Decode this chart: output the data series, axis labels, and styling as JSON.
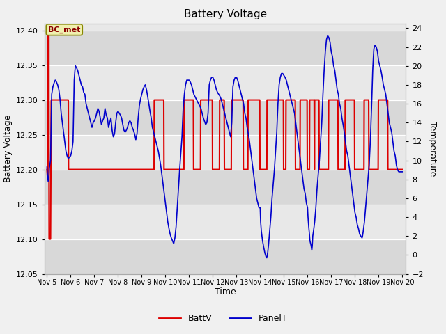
{
  "title": "Battery Voltage",
  "xlabel": "Time",
  "ylabel_left": "Battery Voltage",
  "ylabel_right": "Temperature",
  "ylim_left": [
    12.05,
    12.41
  ],
  "ylim_right": [
    -2,
    24.5
  ],
  "yticks_left": [
    12.05,
    12.1,
    12.15,
    12.2,
    12.25,
    12.3,
    12.35,
    12.4
  ],
  "yticks_right": [
    -2,
    0,
    2,
    4,
    6,
    8,
    10,
    12,
    14,
    16,
    18,
    20,
    22,
    24
  ],
  "annotation_text": "BC_met",
  "fig_bg": "#f0f0f0",
  "plot_bg": "#d8d8d8",
  "band_color": "#e8e8e8",
  "batt_color": "#dd0000",
  "panel_color": "#0000cc",
  "legend_items": [
    "BattV",
    "PanelT"
  ],
  "batt_data": [
    [
      5.0,
      12.2
    ],
    [
      5.02,
      12.19
    ],
    [
      5.05,
      12.4
    ],
    [
      5.08,
      12.4
    ],
    [
      5.09,
      12.1
    ],
    [
      5.15,
      12.1
    ],
    [
      5.18,
      12.3
    ],
    [
      5.9,
      12.3
    ],
    [
      5.91,
      12.2
    ],
    [
      6.0,
      12.2
    ],
    [
      6.55,
      12.2
    ],
    [
      7.0,
      12.2
    ],
    [
      7.5,
      12.2
    ],
    [
      8.0,
      12.2
    ],
    [
      9.0,
      12.2
    ],
    [
      9.52,
      12.2
    ],
    [
      9.53,
      12.3
    ],
    [
      9.93,
      12.3
    ],
    [
      9.94,
      12.2
    ],
    [
      10.0,
      12.2
    ],
    [
      10.78,
      12.2
    ],
    [
      10.79,
      12.3
    ],
    [
      11.18,
      12.3
    ],
    [
      11.19,
      12.2
    ],
    [
      11.48,
      12.2
    ],
    [
      11.49,
      12.3
    ],
    [
      11.98,
      12.3
    ],
    [
      11.99,
      12.2
    ],
    [
      12.28,
      12.2
    ],
    [
      12.29,
      12.3
    ],
    [
      12.48,
      12.3
    ],
    [
      12.49,
      12.2
    ],
    [
      12.78,
      12.2
    ],
    [
      12.79,
      12.3
    ],
    [
      13.28,
      12.3
    ],
    [
      13.29,
      12.2
    ],
    [
      13.48,
      12.2
    ],
    [
      13.49,
      12.3
    ],
    [
      13.98,
      12.3
    ],
    [
      13.99,
      12.2
    ],
    [
      14.28,
      12.2
    ],
    [
      14.29,
      12.3
    ],
    [
      14.98,
      12.3
    ],
    [
      14.99,
      12.2
    ],
    [
      15.08,
      12.2
    ],
    [
      15.09,
      12.3
    ],
    [
      15.48,
      12.3
    ],
    [
      15.49,
      12.2
    ],
    [
      15.68,
      12.2
    ],
    [
      15.69,
      12.3
    ],
    [
      15.98,
      12.3
    ],
    [
      15.99,
      12.2
    ],
    [
      16.08,
      12.2
    ],
    [
      16.09,
      12.3
    ],
    [
      16.28,
      12.3
    ],
    [
      16.29,
      12.2
    ],
    [
      16.3,
      12.3
    ],
    [
      16.48,
      12.3
    ],
    [
      16.49,
      12.2
    ],
    [
      16.88,
      12.2
    ],
    [
      16.89,
      12.3
    ],
    [
      17.28,
      12.3
    ],
    [
      17.29,
      12.2
    ],
    [
      17.58,
      12.2
    ],
    [
      17.59,
      12.3
    ],
    [
      17.98,
      12.3
    ],
    [
      17.99,
      12.2
    ],
    [
      18.38,
      12.2
    ],
    [
      18.39,
      12.3
    ],
    [
      18.58,
      12.3
    ],
    [
      18.59,
      12.2
    ],
    [
      18.98,
      12.2
    ],
    [
      18.99,
      12.3
    ],
    [
      19.38,
      12.3
    ],
    [
      19.39,
      12.2
    ],
    [
      19.48,
      12.2
    ],
    [
      20.0,
      12.2
    ]
  ],
  "panel_data": [
    [
      5.0,
      9.3
    ],
    [
      5.02,
      8.5
    ],
    [
      5.05,
      7.8
    ],
    [
      5.08,
      8.3
    ],
    [
      5.1,
      9.2
    ],
    [
      5.15,
      10.0
    ],
    [
      5.2,
      17.0
    ],
    [
      5.25,
      17.8
    ],
    [
      5.3,
      18.2
    ],
    [
      5.35,
      18.5
    ],
    [
      5.4,
      18.3
    ],
    [
      5.45,
      18.0
    ],
    [
      5.5,
      17.5
    ],
    [
      5.55,
      16.5
    ],
    [
      5.6,
      15.0
    ],
    [
      5.65,
      14.0
    ],
    [
      5.7,
      13.0
    ],
    [
      5.75,
      12.0
    ],
    [
      5.8,
      11.0
    ],
    [
      5.85,
      10.5
    ],
    [
      5.9,
      10.2
    ],
    [
      6.0,
      10.5
    ],
    [
      6.05,
      11.0
    ],
    [
      6.1,
      12.0
    ],
    [
      6.15,
      18.5
    ],
    [
      6.18,
      19.5
    ],
    [
      6.2,
      20.0
    ],
    [
      6.25,
      19.8
    ],
    [
      6.3,
      19.5
    ],
    [
      6.35,
      19.0
    ],
    [
      6.4,
      18.5
    ],
    [
      6.45,
      18.0
    ],
    [
      6.5,
      17.8
    ],
    [
      6.55,
      17.2
    ],
    [
      6.6,
      17.0
    ],
    [
      6.65,
      16.0
    ],
    [
      6.7,
      15.5
    ],
    [
      6.75,
      15.0
    ],
    [
      6.8,
      14.5
    ],
    [
      6.85,
      14.0
    ],
    [
      6.9,
      13.5
    ],
    [
      6.95,
      14.0
    ],
    [
      7.0,
      14.2
    ],
    [
      7.05,
      14.5
    ],
    [
      7.1,
      15.0
    ],
    [
      7.15,
      15.5
    ],
    [
      7.2,
      15.2
    ],
    [
      7.25,
      14.5
    ],
    [
      7.3,
      13.8
    ],
    [
      7.35,
      14.2
    ],
    [
      7.4,
      14.5
    ],
    [
      7.45,
      15.5
    ],
    [
      7.5,
      14.8
    ],
    [
      7.55,
      14.5
    ],
    [
      7.6,
      13.5
    ],
    [
      7.65,
      14.0
    ],
    [
      7.7,
      14.5
    ],
    [
      7.75,
      13.2
    ],
    [
      7.8,
      12.5
    ],
    [
      7.85,
      12.8
    ],
    [
      7.9,
      14.0
    ],
    [
      7.95,
      15.0
    ],
    [
      8.0,
      15.2
    ],
    [
      8.05,
      15.0
    ],
    [
      8.1,
      14.8
    ],
    [
      8.15,
      14.5
    ],
    [
      8.2,
      13.8
    ],
    [
      8.25,
      13.2
    ],
    [
      8.3,
      13.0
    ],
    [
      8.35,
      13.2
    ],
    [
      8.4,
      13.5
    ],
    [
      8.45,
      14.0
    ],
    [
      8.5,
      14.2
    ],
    [
      8.55,
      14.0
    ],
    [
      8.6,
      13.5
    ],
    [
      8.65,
      13.2
    ],
    [
      8.7,
      12.8
    ],
    [
      8.75,
      12.2
    ],
    [
      8.8,
      12.8
    ],
    [
      8.85,
      14.5
    ],
    [
      8.9,
      15.8
    ],
    [
      8.95,
      16.5
    ],
    [
      9.0,
      17.0
    ],
    [
      9.05,
      17.5
    ],
    [
      9.1,
      17.8
    ],
    [
      9.15,
      18.0
    ],
    [
      9.2,
      17.5
    ],
    [
      9.25,
      16.8
    ],
    [
      9.3,
      16.0
    ],
    [
      9.35,
      15.2
    ],
    [
      9.4,
      14.5
    ],
    [
      9.45,
      13.5
    ],
    [
      9.5,
      13.0
    ],
    [
      9.6,
      12.0
    ],
    [
      9.7,
      11.0
    ],
    [
      9.8,
      9.5
    ],
    [
      9.9,
      7.5
    ],
    [
      10.0,
      5.5
    ],
    [
      10.05,
      4.5
    ],
    [
      10.1,
      3.5
    ],
    [
      10.15,
      2.8
    ],
    [
      10.2,
      2.2
    ],
    [
      10.25,
      1.8
    ],
    [
      10.3,
      1.5
    ],
    [
      10.35,
      1.2
    ],
    [
      10.4,
      1.8
    ],
    [
      10.45,
      3.0
    ],
    [
      10.5,
      5.0
    ],
    [
      10.6,
      9.0
    ],
    [
      10.7,
      12.5
    ],
    [
      10.75,
      15.5
    ],
    [
      10.8,
      17.0
    ],
    [
      10.85,
      18.0
    ],
    [
      10.9,
      18.5
    ],
    [
      10.95,
      18.5
    ],
    [
      11.0,
      18.5
    ],
    [
      11.05,
      18.3
    ],
    [
      11.1,
      18.0
    ],
    [
      11.15,
      17.5
    ],
    [
      11.2,
      17.0
    ],
    [
      11.3,
      16.5
    ],
    [
      11.4,
      16.0
    ],
    [
      11.5,
      15.5
    ],
    [
      11.6,
      14.5
    ],
    [
      11.7,
      13.8
    ],
    [
      11.75,
      14.0
    ],
    [
      11.8,
      15.0
    ],
    [
      11.85,
      18.0
    ],
    [
      11.9,
      18.5
    ],
    [
      11.95,
      18.8
    ],
    [
      12.0,
      18.8
    ],
    [
      12.05,
      18.5
    ],
    [
      12.1,
      18.0
    ],
    [
      12.15,
      17.5
    ],
    [
      12.2,
      17.2
    ],
    [
      12.25,
      17.0
    ],
    [
      12.3,
      16.8
    ],
    [
      12.35,
      16.5
    ],
    [
      12.4,
      16.0
    ],
    [
      12.45,
      15.5
    ],
    [
      12.5,
      15.0
    ],
    [
      12.55,
      14.5
    ],
    [
      12.6,
      14.0
    ],
    [
      12.65,
      13.5
    ],
    [
      12.7,
      13.0
    ],
    [
      12.75,
      12.5
    ],
    [
      12.8,
      14.0
    ],
    [
      12.85,
      17.8
    ],
    [
      12.9,
      18.5
    ],
    [
      12.95,
      18.8
    ],
    [
      13.0,
      18.8
    ],
    [
      13.05,
      18.5
    ],
    [
      13.1,
      18.0
    ],
    [
      13.15,
      17.5
    ],
    [
      13.2,
      17.0
    ],
    [
      13.25,
      16.5
    ],
    [
      13.3,
      16.0
    ],
    [
      13.35,
      15.0
    ],
    [
      13.4,
      14.5
    ],
    [
      13.45,
      13.5
    ],
    [
      13.5,
      12.8
    ],
    [
      13.55,
      12.0
    ],
    [
      13.6,
      11.0
    ],
    [
      13.65,
      10.0
    ],
    [
      13.7,
      9.0
    ],
    [
      13.75,
      8.0
    ],
    [
      13.8,
      7.0
    ],
    [
      13.85,
      6.0
    ],
    [
      13.9,
      5.5
    ],
    [
      13.95,
      5.0
    ],
    [
      14.0,
      5.0
    ],
    [
      14.02,
      3.5
    ],
    [
      14.05,
      2.5
    ],
    [
      14.1,
      1.5
    ],
    [
      14.15,
      0.8
    ],
    [
      14.2,
      0.2
    ],
    [
      14.25,
      -0.2
    ],
    [
      14.28,
      -0.3
    ],
    [
      14.32,
      0.3
    ],
    [
      14.35,
      1.0
    ],
    [
      14.4,
      2.5
    ],
    [
      14.45,
      4.0
    ],
    [
      14.5,
      6.0
    ],
    [
      14.6,
      9.0
    ],
    [
      14.7,
      13.0
    ],
    [
      14.75,
      16.0
    ],
    [
      14.8,
      18.0
    ],
    [
      14.85,
      18.8
    ],
    [
      14.9,
      19.2
    ],
    [
      14.95,
      19.2
    ],
    [
      15.0,
      19.0
    ],
    [
      15.05,
      18.8
    ],
    [
      15.1,
      18.5
    ],
    [
      15.15,
      18.0
    ],
    [
      15.2,
      17.5
    ],
    [
      15.25,
      17.0
    ],
    [
      15.3,
      16.5
    ],
    [
      15.35,
      16.0
    ],
    [
      15.4,
      15.5
    ],
    [
      15.45,
      15.0
    ],
    [
      15.5,
      14.0
    ],
    [
      15.55,
      13.0
    ],
    [
      15.6,
      12.0
    ],
    [
      15.65,
      11.0
    ],
    [
      15.7,
      10.0
    ],
    [
      15.75,
      9.0
    ],
    [
      15.8,
      8.0
    ],
    [
      15.85,
      7.0
    ],
    [
      15.9,
      6.5
    ],
    [
      15.95,
      5.5
    ],
    [
      16.0,
      5.0
    ],
    [
      16.02,
      4.0
    ],
    [
      16.05,
      3.0
    ],
    [
      16.08,
      2.2
    ],
    [
      16.1,
      1.5
    ],
    [
      16.15,
      1.0
    ],
    [
      16.18,
      0.5
    ],
    [
      16.2,
      1.0
    ],
    [
      16.22,
      2.0
    ],
    [
      16.25,
      2.5
    ],
    [
      16.3,
      3.5
    ],
    [
      16.35,
      5.0
    ],
    [
      16.4,
      7.0
    ],
    [
      16.5,
      10.0
    ],
    [
      16.6,
      14.0
    ],
    [
      16.65,
      17.0
    ],
    [
      16.7,
      19.5
    ],
    [
      16.75,
      21.5
    ],
    [
      16.8,
      22.8
    ],
    [
      16.85,
      23.2
    ],
    [
      16.9,
      23.0
    ],
    [
      16.95,
      22.5
    ],
    [
      17.0,
      21.5
    ],
    [
      17.05,
      21.0
    ],
    [
      17.1,
      20.0
    ],
    [
      17.15,
      19.5
    ],
    [
      17.2,
      18.5
    ],
    [
      17.25,
      17.5
    ],
    [
      17.3,
      17.0
    ],
    [
      17.35,
      16.0
    ],
    [
      17.4,
      15.5
    ],
    [
      17.45,
      14.5
    ],
    [
      17.5,
      13.8
    ],
    [
      17.55,
      13.0
    ],
    [
      17.6,
      12.0
    ],
    [
      17.65,
      11.0
    ],
    [
      17.7,
      10.5
    ],
    [
      17.75,
      9.5
    ],
    [
      17.8,
      8.5
    ],
    [
      17.85,
      7.5
    ],
    [
      17.9,
      6.5
    ],
    [
      17.95,
      5.5
    ],
    [
      18.0,
      4.5
    ],
    [
      18.05,
      4.0
    ],
    [
      18.1,
      3.2
    ],
    [
      18.15,
      2.8
    ],
    [
      18.2,
      2.2
    ],
    [
      18.25,
      2.0
    ],
    [
      18.3,
      1.8
    ],
    [
      18.32,
      2.0
    ],
    [
      18.35,
      2.5
    ],
    [
      18.4,
      3.5
    ],
    [
      18.45,
      5.0
    ],
    [
      18.5,
      6.5
    ],
    [
      18.6,
      9.5
    ],
    [
      18.65,
      12.0
    ],
    [
      18.7,
      15.5
    ],
    [
      18.75,
      19.5
    ],
    [
      18.78,
      21.0
    ],
    [
      18.8,
      21.8
    ],
    [
      18.82,
      22.0
    ],
    [
      18.85,
      22.2
    ],
    [
      18.9,
      22.0
    ],
    [
      18.95,
      21.5
    ],
    [
      19.0,
      20.5
    ],
    [
      19.05,
      20.0
    ],
    [
      19.1,
      19.5
    ],
    [
      19.15,
      18.8
    ],
    [
      19.2,
      18.0
    ],
    [
      19.25,
      17.5
    ],
    [
      19.3,
      17.0
    ],
    [
      19.35,
      16.0
    ],
    [
      19.4,
      15.0
    ],
    [
      19.45,
      14.0
    ],
    [
      19.5,
      13.5
    ],
    [
      19.55,
      13.0
    ],
    [
      19.6,
      12.0
    ],
    [
      19.65,
      11.0
    ],
    [
      19.7,
      10.5
    ],
    [
      19.75,
      9.5
    ],
    [
      19.8,
      9.0
    ],
    [
      19.85,
      8.8
    ],
    [
      19.9,
      8.8
    ],
    [
      19.95,
      8.8
    ],
    [
      20.0,
      8.8
    ]
  ],
  "xtick_positions": [
    5,
    6,
    7,
    8,
    9,
    10,
    11,
    12,
    13,
    14,
    15,
    16,
    17,
    18,
    19,
    20
  ],
  "xtick_labels": [
    "Nov 5",
    "Nov 6",
    "Nov 7",
    "Nov 8",
    "Nov 9",
    "Nov 10",
    "Nov 11",
    "Nov 12",
    "Nov 13",
    "Nov 14",
    "Nov 15",
    "Nov 16",
    "Nov 17",
    "Nov 18",
    "Nov 19",
    "Nov 20"
  ],
  "xlim": [
    4.9,
    20.15
  ],
  "band_yvals": [
    12.05,
    12.1,
    12.15,
    12.2,
    12.25,
    12.3,
    12.35,
    12.4
  ],
  "shaded_bands": [
    [
      12.1,
      12.15
    ],
    [
      12.2,
      12.25
    ],
    [
      12.3,
      12.35
    ],
    [
      12.4,
      12.41
    ]
  ]
}
